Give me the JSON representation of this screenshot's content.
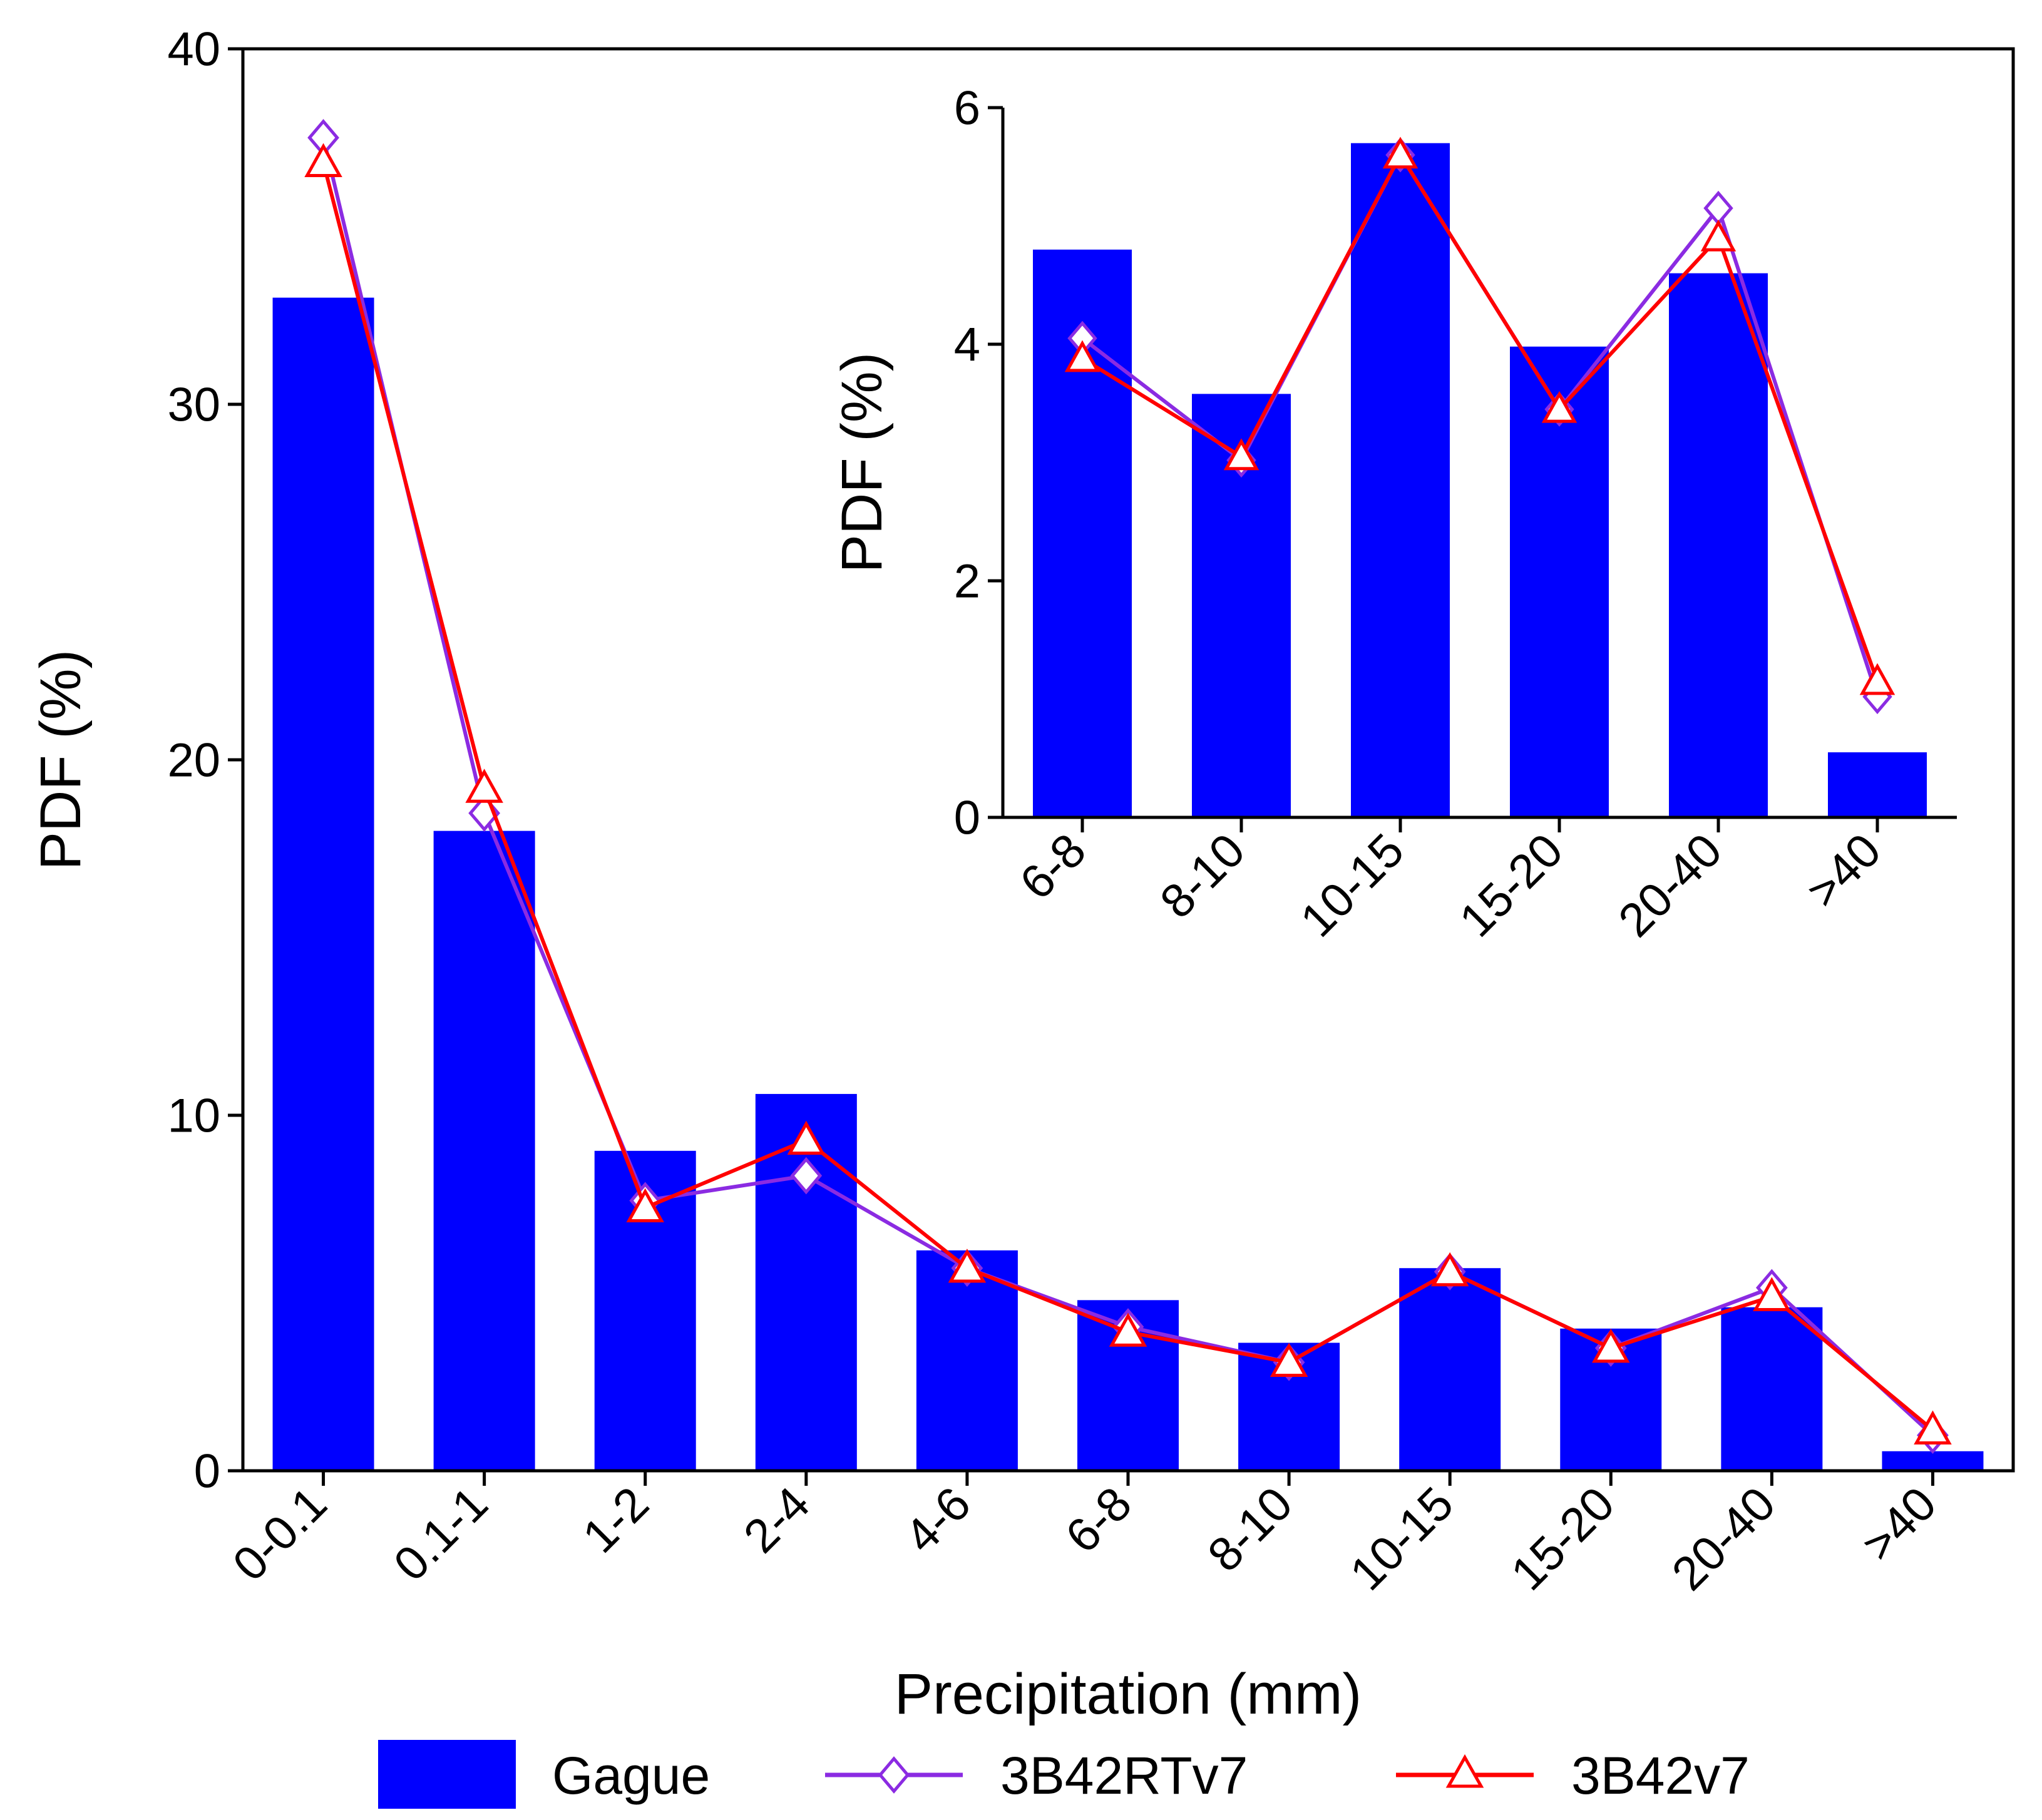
{
  "chart_data": [
    {
      "id": "main",
      "type": "bar",
      "xlabel": "Precipitation (mm)",
      "ylabel": "PDF (%)",
      "ylim": [
        0,
        40
      ],
      "yticks": [
        0,
        10,
        20,
        30,
        40
      ],
      "categories": [
        "0-0.1",
        "0.1-1",
        "1-2",
        "2-4",
        "4-6",
        "6-8",
        "8-10",
        "10-15",
        "15-20",
        "20-40",
        ">40"
      ],
      "series": [
        {
          "name": "Gague",
          "kind": "bar",
          "color": "#0000ff",
          "values": [
            33.0,
            18.0,
            9.0,
            10.6,
            6.2,
            4.8,
            3.6,
            5.7,
            4.0,
            4.6,
            0.55
          ]
        },
        {
          "name": "3B42RTv7",
          "kind": "line",
          "marker": "diamond",
          "color": "#8b2be2",
          "values": [
            37.5,
            18.5,
            7.6,
            8.3,
            5.7,
            4.05,
            3.05,
            5.6,
            3.45,
            5.15,
            1.0
          ]
        },
        {
          "name": "3B42v7",
          "kind": "line",
          "marker": "triangle",
          "color": "#ff0000",
          "values": [
            36.8,
            19.2,
            7.4,
            9.3,
            5.7,
            3.9,
            3.05,
            5.6,
            3.45,
            4.9,
            1.15
          ]
        }
      ]
    },
    {
      "id": "inset",
      "type": "bar",
      "xlabel": "",
      "ylabel": "PDF (%)",
      "ylim": [
        0,
        6
      ],
      "yticks": [
        0,
        2,
        4,
        6
      ],
      "categories": [
        "6-8",
        "8-10",
        "10-15",
        "15-20",
        "20-40",
        ">40"
      ],
      "series": [
        {
          "name": "Gague",
          "kind": "bar",
          "color": "#0000ff",
          "values": [
            4.8,
            3.58,
            5.7,
            3.98,
            4.6,
            0.55
          ]
        },
        {
          "name": "3B42RTv7",
          "kind": "line",
          "marker": "diamond",
          "color": "#8b2be2",
          "values": [
            4.05,
            3.02,
            5.6,
            3.45,
            5.15,
            1.02
          ]
        },
        {
          "name": "3B42v7",
          "kind": "line",
          "marker": "triangle",
          "color": "#ff0000",
          "values": [
            3.88,
            3.05,
            5.6,
            3.45,
            4.9,
            1.15
          ]
        }
      ]
    }
  ],
  "legend": {
    "items": [
      {
        "label": "Gague",
        "symbol": "bar",
        "color": "#0000ff"
      },
      {
        "label": "3B42RTv7",
        "symbol": "diamond",
        "color": "#8b2be2"
      },
      {
        "label": "3B42v7",
        "symbol": "triangle",
        "color": "#ff0000"
      }
    ]
  }
}
